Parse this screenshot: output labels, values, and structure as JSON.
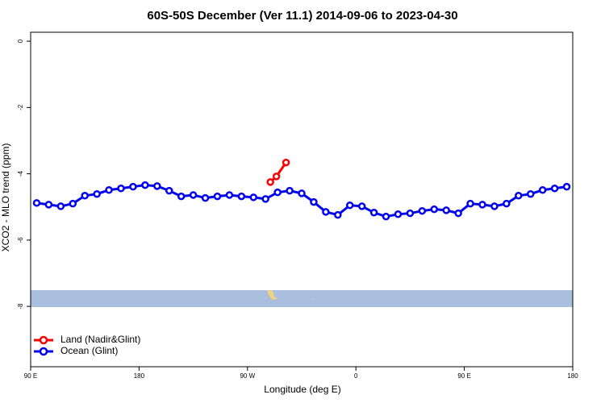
{
  "chart_data": {
    "type": "line",
    "title": "60S-50S December (Ver 11.1)   2014-09-06 to 2023-04-30",
    "x_label": "Longitude (deg E)",
    "y_label": "XCO2 - MLO trend (ppm)",
    "xlim": [
      90,
      540
    ],
    "ylim": [
      -9.82,
      0.27
    ],
    "xticks": [
      {
        "value": 90,
        "label": "90 E"
      },
      {
        "value": 180,
        "label": "180"
      },
      {
        "value": 270,
        "label": "90 W"
      },
      {
        "value": 360,
        "label": "0"
      },
      {
        "value": 450,
        "label": "90 E"
      },
      {
        "value": 540,
        "label": "180"
      }
    ],
    "yticks": [
      0,
      -2,
      -4,
      -6,
      -8
    ],
    "legend": "bottom-left",
    "series": [
      {
        "name": "Land (Nadir&Glint)",
        "color": "#ff0000",
        "x": [
          289,
          294,
          302
        ],
        "values": [
          -4.25,
          -4.08,
          -3.66
        ]
      },
      {
        "name": "Ocean (Glint)",
        "color": "#0000ee",
        "x": [
          95,
          105,
          115,
          125,
          135,
          145,
          155,
          165,
          175,
          185,
          195,
          205,
          215,
          225,
          235,
          245,
          255,
          265,
          275,
          285,
          295,
          305,
          315,
          325,
          335,
          345,
          355,
          365,
          375,
          385,
          395,
          405,
          415,
          425,
          435,
          445,
          455,
          465,
          475,
          485,
          495,
          505,
          515,
          525,
          535
        ],
        "values": [
          -4.88,
          -4.93,
          -4.98,
          -4.9,
          -4.66,
          -4.61,
          -4.49,
          -4.44,
          -4.39,
          -4.34,
          -4.37,
          -4.51,
          -4.68,
          -4.64,
          -4.73,
          -4.68,
          -4.64,
          -4.68,
          -4.71,
          -4.76,
          -4.56,
          -4.51,
          -4.59,
          -4.85,
          -5.15,
          -5.24,
          -4.95,
          -4.98,
          -5.17,
          -5.29,
          -5.22,
          -5.19,
          -5.12,
          -5.07,
          -5.1,
          -5.19,
          -4.9,
          -4.93,
          -4.98,
          -4.9,
          -4.66,
          -4.61,
          -4.49,
          -4.44,
          -4.39
        ]
      }
    ]
  }
}
